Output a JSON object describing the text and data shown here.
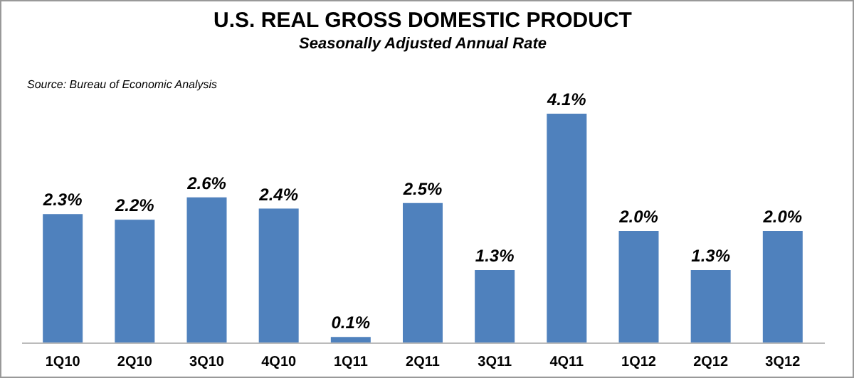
{
  "chart_data": {
    "type": "bar",
    "title": "U.S. REAL GROSS DOMESTIC PRODUCT",
    "subtitle": "Seasonally Adjusted Annual Rate",
    "annotations": [
      "Source: Bureau of Economic Analysis"
    ],
    "categories": [
      "1Q10",
      "2Q10",
      "3Q10",
      "4Q10",
      "1Q11",
      "2Q11",
      "3Q11",
      "4Q11",
      "1Q12",
      "2Q12",
      "3Q12"
    ],
    "values": [
      2.3,
      2.2,
      2.6,
      2.4,
      0.1,
      2.5,
      1.3,
      4.1,
      2.0,
      1.3,
      2.0
    ],
    "value_labels": [
      "2.3%",
      "2.2%",
      "2.6%",
      "2.4%",
      "0.1%",
      "2.5%",
      "1.3%",
      "4.1%",
      "2.0%",
      "1.3%",
      "2.0%"
    ],
    "color": "#4f81bd"
  }
}
